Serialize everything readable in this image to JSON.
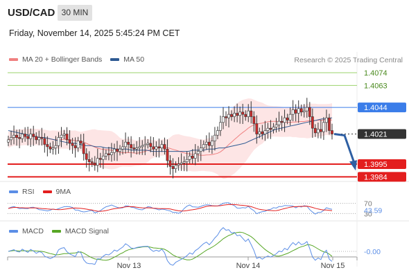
{
  "header": {
    "symbol": "USD/CAD",
    "timeframe": "30 MIN",
    "datetime": "Friday, November 14, 2025 5:45:24 PM CET"
  },
  "copyright": "Research © 2025 Trading Central",
  "colors": {
    "ma20": "#f08080",
    "ma50": "#2e5a93",
    "bollinger_fill": "#fcdcdc",
    "resistance_green": "#9bd36b",
    "pivot_blue": "#3b7de9",
    "support_red": "#e31e1e",
    "current_price_bg": "#333333",
    "arrow": "#2e5fa3",
    "rsi": "#5b8ee6",
    "rsi_ma": "#e31e1e",
    "macd": "#5b8ee6",
    "macd_signal": "#56a624",
    "candle_up": "#ffffff",
    "candle_down": "#cc2a2a"
  },
  "chart_data": [
    {
      "type": "candlestick",
      "legend": [
        {
          "name": "MA 20 + Bollinger Bands",
          "color": "#f08080"
        },
        {
          "name": "MA 50",
          "color": "#2e5a93"
        }
      ],
      "x_ticks": [
        "Nov 13",
        "Nov 14",
        "Nov 15"
      ],
      "ylim": [
        1.398,
        1.408
      ],
      "levels": [
        {
          "value": 1.4074,
          "label": "1.4074",
          "kind": "resistance"
        },
        {
          "value": 1.4063,
          "label": "1.4063",
          "kind": "resistance"
        },
        {
          "value": 1.4044,
          "label": "1.4044",
          "kind": "pivot"
        },
        {
          "value": 1.4021,
          "label": "1.4021",
          "kind": "current"
        },
        {
          "value": 1.3995,
          "label": "1.3995",
          "kind": "support"
        },
        {
          "value": 1.3984,
          "label": "1.3984",
          "kind": "support"
        }
      ],
      "forecast_target": 1.399,
      "closes": [
        1.4016,
        1.4018,
        1.402,
        1.4018,
        1.4017,
        1.4021,
        1.4019,
        1.4017,
        1.4021,
        1.4019,
        1.4016,
        1.4018,
        1.4017,
        1.4012,
        1.401,
        1.4008,
        1.4009,
        1.4011,
        1.4018,
        1.402,
        1.4021,
        1.4016,
        1.4013,
        1.4011,
        1.4009,
        1.4015,
        1.4013,
        1.4004,
        1.3999,
        1.3997,
        1.3996,
        1.3994,
        1.4,
        1.3999,
        1.4002,
        1.4004,
        1.4003,
        1.4005,
        1.4008,
        1.4006,
        1.4008,
        1.401,
        1.4014,
        1.4012,
        1.4009,
        1.4008,
        1.4009,
        1.401,
        1.4011,
        1.4012,
        1.4013,
        1.401,
        1.4008,
        1.401,
        1.4009,
        1.4012,
        1.4008,
        1.3998,
        1.3993,
        1.3991,
        1.3994,
        1.3995,
        1.3996,
        1.3997,
        1.3999,
        1.4002,
        1.4,
        1.4004,
        1.4006,
        1.4009,
        1.4012,
        1.4014,
        1.4011,
        1.4015,
        1.402,
        1.4024,
        1.4031,
        1.4036,
        1.4035,
        1.4038,
        1.4036,
        1.4039,
        1.4037,
        1.404,
        1.4038,
        1.4036,
        1.4041,
        1.4036,
        1.403,
        1.4021,
        1.4023,
        1.4021,
        1.4024,
        1.4026,
        1.4025,
        1.4027,
        1.4029,
        1.4032,
        1.4031,
        1.4035,
        1.4033,
        1.4038,
        1.4042,
        1.4039,
        1.4043,
        1.404,
        1.4041,
        1.4044,
        1.4036,
        1.4026,
        1.4022,
        1.4025,
        1.4023,
        1.4031,
        1.4035,
        1.4024,
        1.4021
      ],
      "ma50": [
        1.4024,
        1.4023,
        1.4022,
        1.4021,
        1.402,
        1.4019,
        1.4018,
        1.4018,
        1.4017,
        1.4016,
        1.4015,
        1.4014,
        1.4013,
        1.4013,
        1.4012,
        1.4011,
        1.4011,
        1.401,
        1.401,
        1.4009,
        1.4009,
        1.4008,
        1.4008,
        1.4008,
        1.4007,
        1.4007,
        1.4007,
        1.4007,
        1.4006,
        1.4006,
        1.4006,
        1.4006,
        1.4006,
        1.4006,
        1.4006,
        1.4006,
        1.4007,
        1.4007,
        1.4007,
        1.4008,
        1.4008,
        1.4009,
        1.4009,
        1.401,
        1.4011,
        1.4012,
        1.4013,
        1.4015,
        1.4017,
        1.4019,
        1.4021,
        1.4023,
        1.4025,
        1.4026,
        1.4027,
        1.4028,
        1.4029,
        1.403,
        1.4031,
        1.4032,
        1.4033,
        1.4034,
        1.4034,
        1.4035
      ]
    },
    {
      "type": "line",
      "title": "RSI",
      "series": [
        {
          "name": "RSI"
        },
        {
          "name": "9MA"
        }
      ],
      "reference_levels": [
        70,
        30
      ],
      "current_value": "43.59",
      "levels_text": [
        "70",
        "30"
      ]
    },
    {
      "type": "line",
      "title": "MACD",
      "series": [
        {
          "name": "MACD"
        },
        {
          "name": "MACD Signal"
        }
      ],
      "current_value": "-0.00"
    }
  ]
}
